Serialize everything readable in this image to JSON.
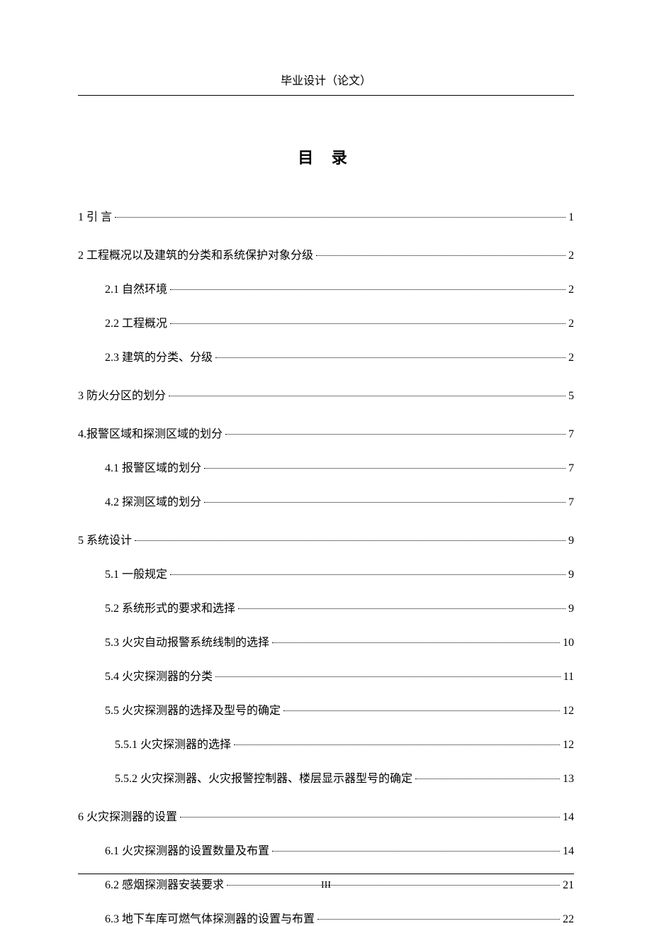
{
  "header_text": "毕业设计（论文）",
  "toc_title": "目  录",
  "page_number": "III",
  "colors": {
    "background": "#ffffff",
    "text": "#000000",
    "line": "#000000"
  },
  "typography": {
    "body_font": "SimSun",
    "header_fontsize": 16,
    "title_fontsize": 22,
    "entry_fontsize": 16,
    "pagenum_fontsize": 14
  },
  "entries": [
    {
      "level": 1,
      "text": "1 引   言",
      "page": "1",
      "group_start": false
    },
    {
      "level": 1,
      "text": "2 工程概况以及建筑的分类和系统保护对象分级",
      "page": "2",
      "group_start": true
    },
    {
      "level": 2,
      "text": "2.1 自然环境",
      "page": "2",
      "group_start": false
    },
    {
      "level": 2,
      "text": "2.2 工程概况",
      "page": "2",
      "group_start": false
    },
    {
      "level": 2,
      "text": "2.3 建筑的分类、分级",
      "page": "2",
      "group_start": false
    },
    {
      "level": 1,
      "text": "3 防火分区的划分",
      "page": "5",
      "group_start": true
    },
    {
      "level": 1,
      "text": "4.报警区域和探测区域的划分",
      "page": "7",
      "group_start": true
    },
    {
      "level": 2,
      "text": "4.1 报警区域的划分",
      "page": "7",
      "group_start": false
    },
    {
      "level": 2,
      "text": "4.2 探测区域的划分",
      "page": "7",
      "group_start": false
    },
    {
      "level": 1,
      "text": "5 系统设计",
      "page": "9",
      "group_start": true
    },
    {
      "level": 2,
      "text": "5.1 一般规定",
      "page": "9",
      "group_start": false
    },
    {
      "level": 2,
      "text": "5.2 系统形式的要求和选择",
      "page": "9",
      "group_start": false
    },
    {
      "level": 2,
      "text": "5.3 火灾自动报警系统线制的选择",
      "page": "10",
      "group_start": false
    },
    {
      "level": 2,
      "text": "5.4 火灾探测器的分类",
      "page": "11",
      "group_start": false
    },
    {
      "level": 2,
      "text": "5.5 火灾探测器的选择及型号的确定",
      "page": "12",
      "group_start": false
    },
    {
      "level": 3,
      "text": "5.5.1 火灾探测器的选择",
      "page": "12",
      "group_start": false
    },
    {
      "level": 3,
      "text": "5.5.2 火灾探测器、火灾报警控制器、楼层显示器型号的确定",
      "page": "13",
      "group_start": false
    },
    {
      "level": 1,
      "text": "6 火灾探测器的设置",
      "page": "14",
      "group_start": true
    },
    {
      "level": 2,
      "text": "6.1 火灾探测器的设置数量及布置",
      "page": "14",
      "group_start": false
    },
    {
      "level": 2,
      "text": "6.2 感烟探测器安装要求",
      "page": "21",
      "group_start": false
    },
    {
      "level": 2,
      "text": "6.3 地下车库可燃气体探测器的设置与布置",
      "page": "22",
      "group_start": false
    }
  ]
}
